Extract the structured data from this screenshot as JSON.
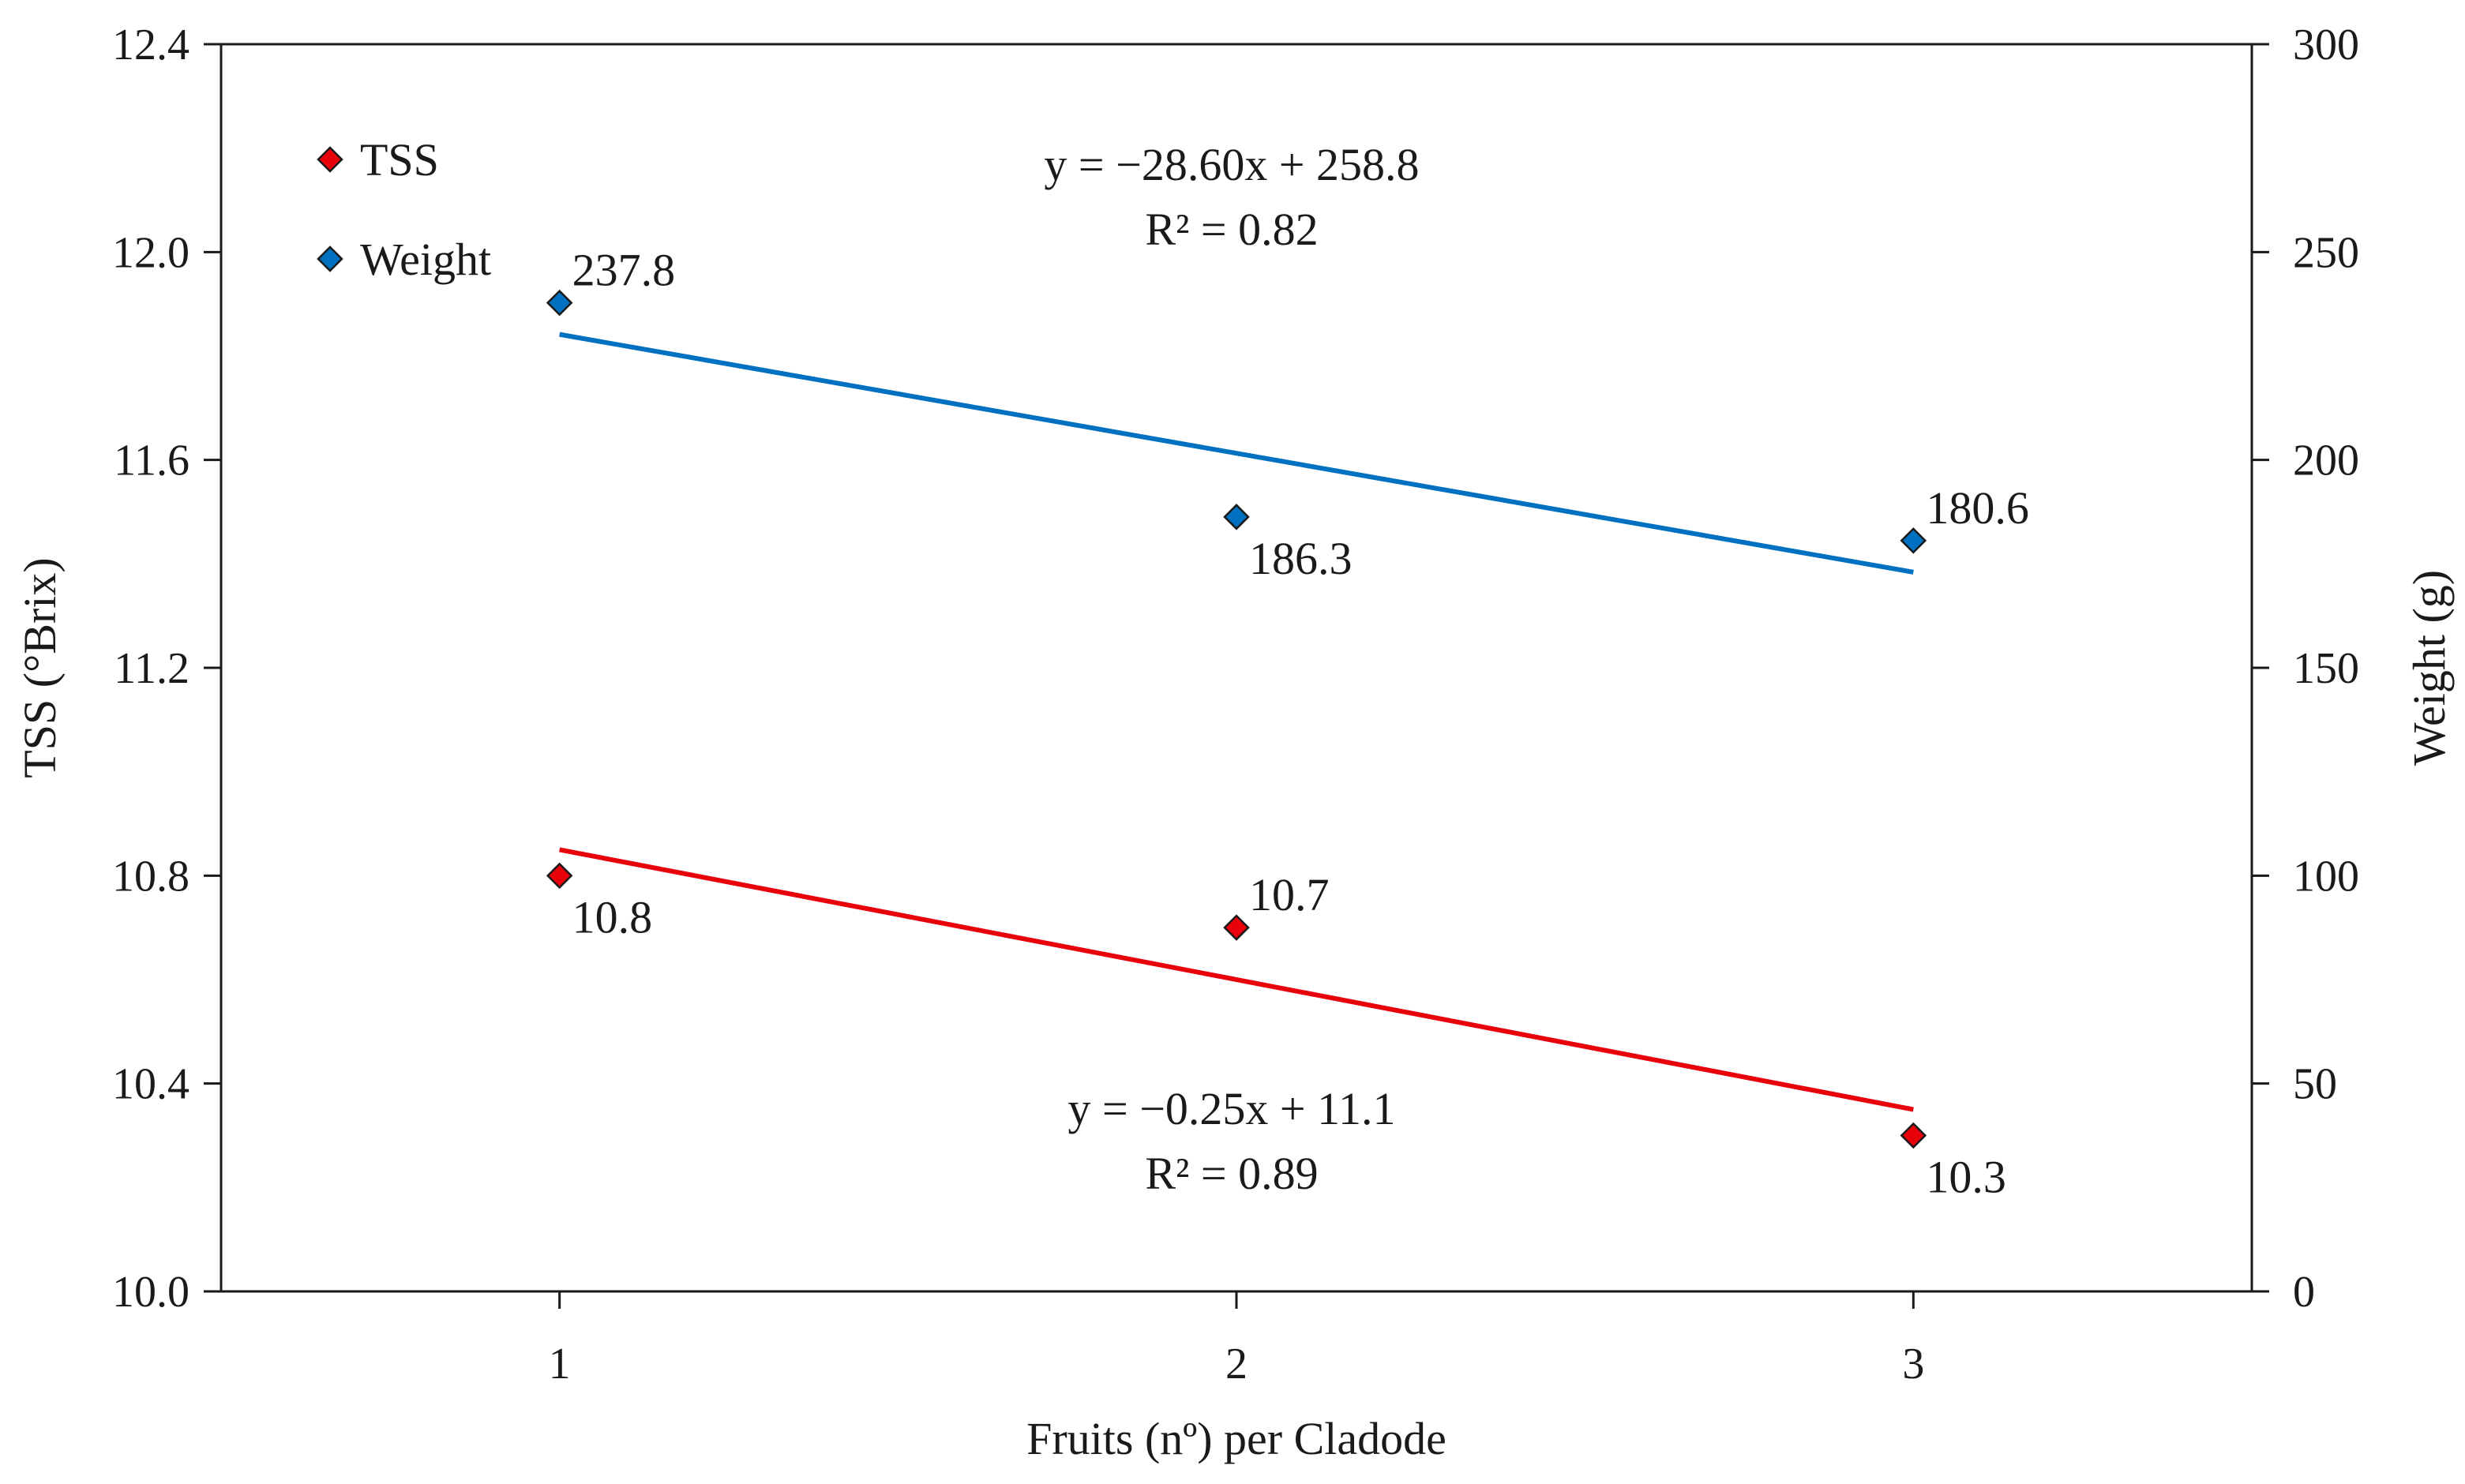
{
  "chart_data": {
    "type": "scatter",
    "xlabel": "Fruits (nº) per Cladode",
    "ylabel_left": "TSS (°Brix)",
    "ylabel_right": "Weight (g)",
    "xlim": [
      0.5,
      3.5
    ],
    "ylim_left": [
      10.0,
      12.4
    ],
    "ylim_right": [
      0,
      300
    ],
    "x_ticks": [
      "1",
      "2",
      "3"
    ],
    "y_left_ticks": [
      "10.0",
      "10.4",
      "10.8",
      "11.2",
      "11.6",
      "12.0",
      "12.4"
    ],
    "y_right_ticks": [
      "0",
      "50",
      "100",
      "150",
      "200",
      "250",
      "300"
    ],
    "legend": {
      "position": "top-left",
      "items": [
        "TSS",
        "Weight"
      ]
    },
    "series": [
      {
        "name": "TSS",
        "axis": "left",
        "color": "#e8000b",
        "marker": "diamond",
        "x": [
          1,
          2,
          3
        ],
        "values": [
          10.8,
          10.7,
          10.3
        ],
        "labels": [
          "10.8",
          "10.7",
          "10.3"
        ],
        "label_side": [
          "below",
          "above",
          "below"
        ],
        "trendline": {
          "slope": -0.25,
          "intercept": 11.1
        },
        "equation": "y = −0.25x + 11.1",
        "r2": "R² = 0.89"
      },
      {
        "name": "Weight",
        "axis": "right",
        "color": "#0070c0",
        "marker": "diamond",
        "x": [
          1,
          2,
          3
        ],
        "values": [
          237.8,
          186.3,
          180.6
        ],
        "labels": [
          "237.8",
          "186.3",
          "180.6"
        ],
        "label_side": [
          "above",
          "below",
          "above"
        ],
        "trendline": {
          "slope": -28.6,
          "intercept": 258.8
        },
        "equation": "y = −28.60x + 258.8",
        "r2": "R² = 0.82"
      }
    ]
  }
}
